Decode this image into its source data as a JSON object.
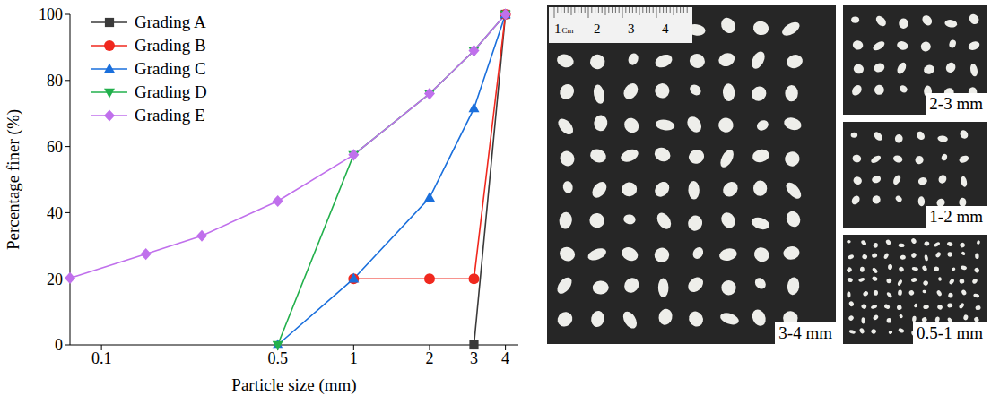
{
  "chart_data": {
    "type": "line",
    "xlabel": "Particle size (mm)",
    "ylabel": "Percentage finer (%)",
    "log": "x",
    "xlim": [
      0.075,
      4.5
    ],
    "xticks": [
      0.1,
      0.5,
      1,
      2,
      3,
      4
    ],
    "ylim": [
      0,
      100
    ],
    "yticks": [
      0,
      20,
      40,
      60,
      80,
      100
    ],
    "grid": false,
    "legend": "upper left",
    "series": [
      {
        "name": "Grading A",
        "color": "#3a3a3a",
        "marker": "square",
        "x": [
          3,
          4
        ],
        "values": [
          0,
          100
        ]
      },
      {
        "name": "Grading B",
        "color": "#f0281e",
        "marker": "circle",
        "x": [
          1,
          2,
          3,
          4
        ],
        "values": [
          20,
          20,
          20,
          100
        ]
      },
      {
        "name": "Grading C",
        "color": "#1a6fdc",
        "marker": "triangle",
        "x": [
          0.5,
          1,
          2,
          3,
          4
        ],
        "values": [
          0,
          20,
          44.5,
          71.5,
          100
        ]
      },
      {
        "name": "Grading D",
        "color": "#22b04c",
        "marker": "triangle_down",
        "x": [
          0.5,
          1,
          2,
          3,
          4
        ],
        "values": [
          0,
          57.5,
          76,
          89,
          100
        ]
      },
      {
        "name": "Grading E",
        "color": "#c070ec",
        "marker": "diamond",
        "x": [
          0.075,
          0.15,
          0.25,
          0.5,
          1,
          2,
          3,
          4
        ],
        "values": [
          20.2,
          27.5,
          33,
          43.5,
          57.5,
          76,
          89,
          100
        ]
      }
    ]
  },
  "photos": {
    "ruler_labels": [
      "1",
      "Cm",
      "2",
      "3",
      "4"
    ],
    "labels": [
      "3-4 mm",
      "2-3 mm",
      "1-2 mm",
      "0.5-1 mm"
    ]
  }
}
